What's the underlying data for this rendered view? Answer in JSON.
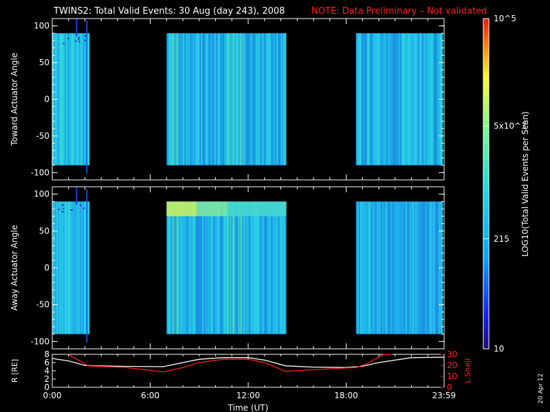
{
  "header": {
    "title": "TWINS2: Total Valid Events: 30 Aug (day 243), 2008",
    "note": "NOTE: Data Preliminary – Not validated",
    "note_color": "#ff2020"
  },
  "side_date": "20 Apr 12",
  "colorbar": {
    "label": "LOG10(Total Valid Events per Scan)",
    "ticks": [
      {
        "value": 10,
        "label": "10"
      },
      {
        "value": 215,
        "label": "215"
      },
      {
        "value": 5000,
        "label": "5x10^3"
      },
      {
        "value": 100000,
        "label": "10^5"
      }
    ]
  },
  "chart_data": [
    {
      "type": "heatmap",
      "title": "Toward Actuator Angle",
      "xlabel": "",
      "ylabel": "Toward Actuator Angle",
      "x_unit": "hours UT",
      "xlim": [
        0,
        24
      ],
      "ylim": [
        -110,
        110
      ],
      "y_ticks": [
        100,
        50,
        0,
        -50,
        -100
      ],
      "data_blocks": [
        {
          "t_start": 0.0,
          "t_end": 2.2,
          "y_range": [
            -90,
            90
          ],
          "level": "low-mid"
        },
        {
          "t_start": 7.0,
          "t_end": 14.3,
          "y_range": [
            -90,
            90
          ],
          "level": "mid"
        },
        {
          "t_start": 18.6,
          "t_end": 23.9,
          "y_range": [
            -90,
            90
          ],
          "level": "mid"
        }
      ],
      "colorscale": "log",
      "zlim": [
        10,
        100000
      ]
    },
    {
      "type": "heatmap",
      "title": "Away Actuator Angle",
      "xlabel": "",
      "ylabel": "Away Actuator Angle",
      "x_unit": "hours UT",
      "xlim": [
        0,
        24
      ],
      "ylim": [
        -110,
        110
      ],
      "y_ticks": [
        100,
        50,
        0,
        -50,
        -100
      ],
      "data_blocks": [
        {
          "t_start": 0.0,
          "t_end": 2.2,
          "y_range": [
            -90,
            90
          ],
          "level": "low-mid"
        },
        {
          "t_start": 7.0,
          "t_end": 14.3,
          "y_range": [
            -90,
            90
          ],
          "level": "mid",
          "enhanced_band_y": [
            70,
            90
          ]
        },
        {
          "t_start": 18.6,
          "t_end": 23.9,
          "y_range": [
            -90,
            90
          ],
          "level": "mid"
        }
      ],
      "colorscale": "log",
      "zlim": [
        10,
        100000
      ]
    },
    {
      "type": "line",
      "xlabel": "Time (UT)",
      "ylabel": "R [RE]",
      "ylabel_right": "L Shell",
      "xlim": [
        0,
        24
      ],
      "ylim": [
        0,
        8
      ],
      "ylim_right": [
        0,
        30
      ],
      "x_tick_labels": [
        "0:00",
        "6:00",
        "12:00",
        "18:00",
        "23:59"
      ],
      "y_ticks_left": [
        0,
        2,
        4,
        6,
        8
      ],
      "y_ticks_right": [
        0,
        10,
        20,
        30
      ],
      "series": [
        {
          "name": "R [RE]",
          "color": "#ffffff",
          "axis": "left",
          "x": [
            0,
            1,
            2,
            4,
            6.8,
            8,
            9,
            10.5,
            12,
            13,
            14.3,
            16,
            18,
            19,
            20,
            22,
            23.99
          ],
          "y": [
            7.0,
            6.4,
            5.3,
            5.1,
            5.0,
            6.0,
            6.8,
            7.2,
            7.2,
            6.6,
            5.2,
            4.9,
            4.8,
            5.1,
            6.0,
            7.2,
            7.3
          ]
        },
        {
          "name": "L Shell",
          "color": "#ff2020",
          "axis": "right",
          "x": [
            0.9,
            1.2,
            2.2,
            4.5,
            6.8,
            8,
            9,
            10.5,
            12,
            13,
            14.3,
            16,
            18.6,
            19.2,
            20.3,
            20.8
          ],
          "y": [
            30,
            28,
            19.5,
            18,
            14,
            18,
            22.5,
            25.5,
            25.5,
            22.5,
            14.5,
            16,
            18,
            21,
            30,
            30
          ]
        }
      ]
    }
  ]
}
